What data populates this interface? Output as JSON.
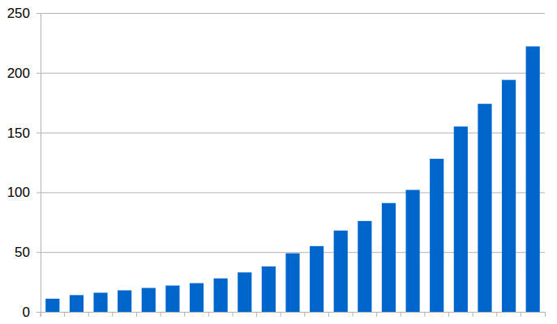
{
  "chart_data": {
    "type": "bar",
    "categories": [
      null,
      null,
      null,
      null,
      null,
      null,
      null,
      null,
      null,
      null,
      null,
      null,
      null,
      null,
      null,
      null,
      null,
      null,
      null,
      null,
      null
    ],
    "values": [
      11,
      14,
      16,
      18,
      20,
      22,
      24,
      28,
      33,
      38,
      49,
      55,
      68,
      76,
      91,
      102,
      128,
      155,
      174,
      194,
      222
    ],
    "color": "#0066cc",
    "ylim": [
      0,
      250
    ],
    "yticks": [
      0,
      50,
      100,
      150,
      200,
      250
    ],
    "grid": true,
    "tick_labels": "y"
  }
}
